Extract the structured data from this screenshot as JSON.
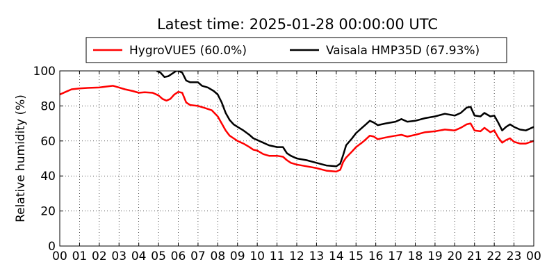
{
  "chart_data": {
    "type": "line",
    "title": "Latest time: 2025-01-28 00:00:00 UTC",
    "xlabel": "",
    "ylabel": "Relative humidity (%)",
    "xlim": [
      0,
      24
    ],
    "ylim": [
      0,
      100
    ],
    "x_tick_values": [
      0,
      1,
      2,
      3,
      4,
      5,
      6,
      7,
      8,
      9,
      10,
      11,
      12,
      13,
      14,
      15,
      16,
      17,
      18,
      19,
      20,
      21,
      22,
      23,
      24
    ],
    "x_tick_labels": [
      "00",
      "01",
      "02",
      "03",
      "04",
      "05",
      "06",
      "07",
      "08",
      "09",
      "10",
      "11",
      "12",
      "13",
      "14",
      "15",
      "16",
      "17",
      "18",
      "19",
      "20",
      "21",
      "22",
      "23",
      "00"
    ],
    "y_ticks": [
      0,
      20,
      40,
      60,
      80,
      100
    ],
    "grid": true,
    "legend_placement": "top",
    "series": [
      {
        "name": "HygroVUE5 (60.0%)",
        "color": "#ff0000",
        "points": [
          [
            0,
            86.5
          ],
          [
            0.3,
            88
          ],
          [
            0.6,
            89.5
          ],
          [
            1.0,
            90
          ],
          [
            1.5,
            90.3
          ],
          [
            2.0,
            90.5
          ],
          [
            2.3,
            91
          ],
          [
            2.7,
            91.5
          ],
          [
            3.0,
            90.5
          ],
          [
            3.3,
            89.5
          ],
          [
            3.7,
            88.5
          ],
          [
            4.0,
            87.5
          ],
          [
            4.3,
            87.8
          ],
          [
            4.7,
            87.5
          ],
          [
            5.0,
            86
          ],
          [
            5.2,
            84
          ],
          [
            5.4,
            83
          ],
          [
            5.6,
            84
          ],
          [
            5.8,
            86.5
          ],
          [
            6.0,
            88
          ],
          [
            6.2,
            87.5
          ],
          [
            6.4,
            82
          ],
          [
            6.6,
            80.5
          ],
          [
            7.0,
            80
          ],
          [
            7.3,
            79
          ],
          [
            7.7,
            77.5
          ],
          [
            8.0,
            74
          ],
          [
            8.2,
            70
          ],
          [
            8.4,
            66
          ],
          [
            8.6,
            63
          ],
          [
            8.8,
            61.5
          ],
          [
            9.0,
            60
          ],
          [
            9.3,
            58.5
          ],
          [
            9.6,
            56.5
          ],
          [
            9.8,
            55
          ],
          [
            10.0,
            54.5
          ],
          [
            10.3,
            52.5
          ],
          [
            10.6,
            51.5
          ],
          [
            11.0,
            51.5
          ],
          [
            11.3,
            51
          ],
          [
            11.5,
            49
          ],
          [
            11.7,
            47.5
          ],
          [
            12.0,
            46.5
          ],
          [
            12.5,
            45.5
          ],
          [
            13.0,
            44.5
          ],
          [
            13.5,
            43
          ],
          [
            14.0,
            42.5
          ],
          [
            14.2,
            43.5
          ],
          [
            14.35,
            48
          ],
          [
            14.5,
            50.5
          ],
          [
            14.8,
            54
          ],
          [
            15.0,
            56.5
          ],
          [
            15.3,
            59
          ],
          [
            15.5,
            61
          ],
          [
            15.7,
            63
          ],
          [
            15.9,
            62.5
          ],
          [
            16.1,
            61
          ],
          [
            16.5,
            62
          ],
          [
            17.0,
            63
          ],
          [
            17.3,
            63.5
          ],
          [
            17.6,
            62.5
          ],
          [
            18.0,
            63.5
          ],
          [
            18.5,
            65
          ],
          [
            19.0,
            65.5
          ],
          [
            19.5,
            66.5
          ],
          [
            20.0,
            66
          ],
          [
            20.3,
            67.5
          ],
          [
            20.6,
            69.5
          ],
          [
            20.8,
            70
          ],
          [
            21.0,
            66
          ],
          [
            21.3,
            65.5
          ],
          [
            21.5,
            67.5
          ],
          [
            21.8,
            65
          ],
          [
            22.0,
            66
          ],
          [
            22.2,
            62
          ],
          [
            22.4,
            59
          ],
          [
            22.6,
            60.5
          ],
          [
            22.8,
            61.5
          ],
          [
            23.0,
            59.5
          ],
          [
            23.3,
            58.5
          ],
          [
            23.6,
            58.5
          ],
          [
            24.0,
            60
          ]
        ]
      },
      {
        "name": "Vaisala HMP35D (67.93%)",
        "color": "#000000",
        "points": [
          [
            4.9,
            100
          ],
          [
            5.1,
            99
          ],
          [
            5.3,
            96.5
          ],
          [
            5.5,
            97
          ],
          [
            5.7,
            98.5
          ],
          [
            5.9,
            100
          ],
          [
            6.0,
            100
          ],
          [
            6.2,
            99
          ],
          [
            6.4,
            94.5
          ],
          [
            6.6,
            93.5
          ],
          [
            7.0,
            93.5
          ],
          [
            7.2,
            91.5
          ],
          [
            7.5,
            90.5
          ],
          [
            7.8,
            88.5
          ],
          [
            8.0,
            86.5
          ],
          [
            8.2,
            82
          ],
          [
            8.4,
            76
          ],
          [
            8.6,
            72
          ],
          [
            8.8,
            69.5
          ],
          [
            9.0,
            68
          ],
          [
            9.3,
            66
          ],
          [
            9.6,
            63.5
          ],
          [
            9.8,
            61.5
          ],
          [
            10.0,
            60.5
          ],
          [
            10.3,
            59
          ],
          [
            10.6,
            57.5
          ],
          [
            11.0,
            56.5
          ],
          [
            11.3,
            56.5
          ],
          [
            11.5,
            53
          ],
          [
            11.7,
            51.5
          ],
          [
            12.0,
            50
          ],
          [
            12.5,
            49
          ],
          [
            13.0,
            47.5
          ],
          [
            13.5,
            46
          ],
          [
            14.0,
            45.5
          ],
          [
            14.2,
            47
          ],
          [
            14.35,
            52
          ],
          [
            14.5,
            57.5
          ],
          [
            14.8,
            61.5
          ],
          [
            15.0,
            64.5
          ],
          [
            15.3,
            67.5
          ],
          [
            15.5,
            69.5
          ],
          [
            15.7,
            71.5
          ],
          [
            15.9,
            70.5
          ],
          [
            16.1,
            69
          ],
          [
            16.5,
            70
          ],
          [
            17.0,
            71
          ],
          [
            17.3,
            72.5
          ],
          [
            17.6,
            71
          ],
          [
            18.0,
            71.5
          ],
          [
            18.5,
            73
          ],
          [
            19.0,
            74
          ],
          [
            19.5,
            75.5
          ],
          [
            20.0,
            74.5
          ],
          [
            20.3,
            76
          ],
          [
            20.6,
            79
          ],
          [
            20.8,
            79.5
          ],
          [
            21.0,
            74.5
          ],
          [
            21.3,
            74
          ],
          [
            21.5,
            76
          ],
          [
            21.8,
            74
          ],
          [
            22.0,
            74.5
          ],
          [
            22.2,
            70.5
          ],
          [
            22.4,
            66
          ],
          [
            22.6,
            68
          ],
          [
            22.8,
            69.5
          ],
          [
            23.0,
            68
          ],
          [
            23.3,
            66.5
          ],
          [
            23.6,
            66
          ],
          [
            24.0,
            68
          ]
        ]
      }
    ]
  }
}
